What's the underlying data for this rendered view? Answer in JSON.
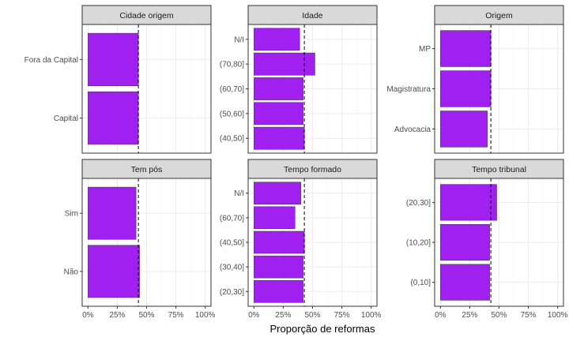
{
  "chart_data": {
    "type": "bar",
    "orientation": "horizontal",
    "xlabel": "Proporção de reformas",
    "xlim": [
      0,
      1
    ],
    "x_ticks": [
      "0%",
      "25%",
      "50%",
      "75%",
      "100%"
    ],
    "x_tick_values": [
      0,
      0.25,
      0.5,
      0.75,
      1.0
    ],
    "reference_line": 0.43,
    "bar_color": "#A020F0",
    "grid": true,
    "panels": [
      {
        "title": "Cidade origem",
        "categories": [
          "Fora da Capital",
          "Capital"
        ],
        "values": [
          0.43,
          0.43
        ]
      },
      {
        "title": "Idade",
        "categories": [
          "N/I",
          "(70,80]",
          "(60,70]",
          "(50,60]",
          "(40,50]"
        ],
        "values": [
          0.39,
          0.52,
          0.42,
          0.42,
          0.43
        ]
      },
      {
        "title": "Origem",
        "categories": [
          "MP",
          "Magistratura",
          "Advocacia"
        ],
        "values": [
          0.43,
          0.43,
          0.4
        ]
      },
      {
        "title": "Tem pós",
        "categories": [
          "Sim",
          "Não"
        ],
        "values": [
          0.41,
          0.44
        ]
      },
      {
        "title": "Tempo formado",
        "categories": [
          "N/I",
          "(60,70]",
          "(40,50]",
          "(30,40]",
          "(20,30]"
        ],
        "values": [
          0.4,
          0.35,
          0.43,
          0.42,
          0.42
        ]
      },
      {
        "title": "Tempo tribunal",
        "categories": [
          "(20,30]",
          "(10,20]",
          "(0,10]"
        ],
        "values": [
          0.48,
          0.42,
          0.42
        ]
      }
    ]
  }
}
